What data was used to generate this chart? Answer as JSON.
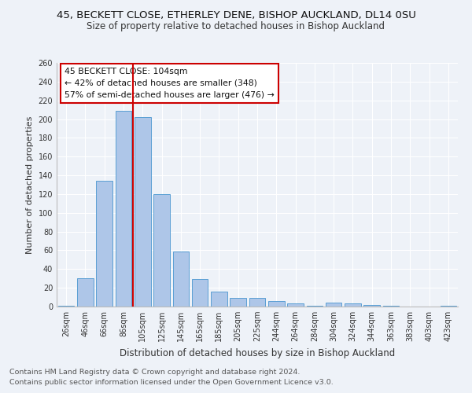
{
  "title_line1": "45, BECKETT CLOSE, ETHERLEY DENE, BISHOP AUCKLAND, DL14 0SU",
  "title_line2": "Size of property relative to detached houses in Bishop Auckland",
  "xlabel": "Distribution of detached houses by size in Bishop Auckland",
  "ylabel": "Number of detached properties",
  "categories": [
    "26sqm",
    "46sqm",
    "66sqm",
    "86sqm",
    "105sqm",
    "125sqm",
    "145sqm",
    "165sqm",
    "185sqm",
    "205sqm",
    "225sqm",
    "244sqm",
    "264sqm",
    "284sqm",
    "304sqm",
    "324sqm",
    "344sqm",
    "363sqm",
    "383sqm",
    "403sqm",
    "423sqm"
  ],
  "values": [
    1,
    30,
    134,
    209,
    202,
    120,
    59,
    29,
    16,
    9,
    9,
    6,
    3,
    1,
    4,
    3,
    2,
    1,
    0,
    0,
    1
  ],
  "bar_color": "#aec6e8",
  "bar_edge_color": "#5a9fd4",
  "vline_color": "#cc0000",
  "annotation_box_text": "45 BECKETT CLOSE: 104sqm\n← 42% of detached houses are smaller (348)\n57% of semi-detached houses are larger (476) →",
  "annotation_box_color": "#cc0000",
  "annotation_box_bg": "#ffffff",
  "ylim": [
    0,
    260
  ],
  "yticks": [
    0,
    20,
    40,
    60,
    80,
    100,
    120,
    140,
    160,
    180,
    200,
    220,
    240,
    260
  ],
  "footer_line1": "Contains HM Land Registry data © Crown copyright and database right 2024.",
  "footer_line2": "Contains public sector information licensed under the Open Government Licence v3.0.",
  "bg_color": "#eef2f8",
  "grid_color": "#ffffff",
  "title1_fontsize": 9.5,
  "title2_fontsize": 8.5,
  "annotation_fontsize": 7.8,
  "footer_fontsize": 6.8,
  "ylabel_fontsize": 8,
  "xlabel_fontsize": 8.5,
  "tick_fontsize": 7
}
